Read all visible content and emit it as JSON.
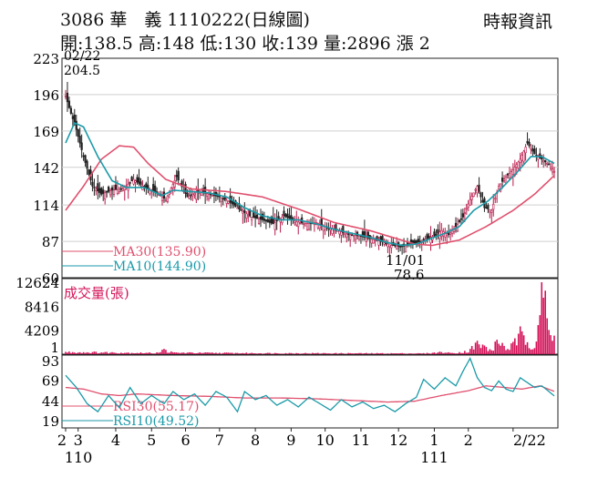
{
  "header": {
    "stock": "3086 華　義 1110222(日線圖)",
    "source": "時報資訊",
    "ohlc": "開:138.5 高:148 低:130 收:139 量:2896 漲 2"
  },
  "chart_data": [
    {
      "type": "candlestick",
      "ylim": [
        60,
        223
      ],
      "yticks": [
        "223",
        "196",
        "169",
        "142",
        "114",
        "87",
        "60"
      ],
      "annotations": {
        "high_date": "02/22",
        "high_value": "204.5",
        "low_date": "11/01",
        "low_value": "78.6"
      },
      "legend": [
        {
          "label": "MA30(135.90)",
          "color": "#e0506e"
        },
        {
          "label": "MA10(144.90)",
          "color": "#1b9aa8"
        }
      ],
      "price_keypoints": [
        [
          0,
          195
        ],
        [
          3,
          182
        ],
        [
          6,
          170
        ],
        [
          10,
          150
        ],
        [
          15,
          128
        ],
        [
          20,
          122
        ],
        [
          26,
          125
        ],
        [
          32,
          126
        ],
        [
          38,
          133
        ],
        [
          44,
          127
        ],
        [
          50,
          124
        ],
        [
          56,
          118
        ],
        [
          62,
          135
        ],
        [
          68,
          120
        ],
        [
          74,
          124
        ],
        [
          80,
          122
        ],
        [
          86,
          120
        ],
        [
          92,
          116
        ],
        [
          98,
          110
        ],
        [
          104,
          105
        ],
        [
          110,
          103
        ],
        [
          116,
          100
        ],
        [
          122,
          106
        ],
        [
          128,
          102
        ],
        [
          134,
          100
        ],
        [
          140,
          101
        ],
        [
          146,
          97
        ],
        [
          152,
          95
        ],
        [
          158,
          92
        ],
        [
          164,
          91
        ],
        [
          170,
          89
        ],
        [
          176,
          87
        ],
        [
          182,
          84
        ],
        [
          188,
          83
        ],
        [
          194,
          85
        ],
        [
          200,
          88
        ],
        [
          206,
          91
        ],
        [
          210,
          95
        ],
        [
          214,
          92
        ],
        [
          218,
          98
        ],
        [
          222,
          105
        ],
        [
          226,
          118
        ],
        [
          230,
          128
        ],
        [
          234,
          112
        ],
        [
          238,
          110
        ],
        [
          242,
          128
        ],
        [
          246,
          135
        ],
        [
          250,
          140
        ],
        [
          254,
          148
        ],
        [
          258,
          160
        ],
        [
          262,
          152
        ],
        [
          266,
          148
        ],
        [
          270,
          144
        ],
        [
          273,
          139
        ]
      ],
      "ma30_keypoints": [
        [
          0,
          110
        ],
        [
          10,
          128
        ],
        [
          20,
          148
        ],
        [
          30,
          158
        ],
        [
          38,
          157
        ],
        [
          46,
          145
        ],
        [
          56,
          133
        ],
        [
          70,
          126
        ],
        [
          90,
          124
        ],
        [
          110,
          120
        ],
        [
          130,
          111
        ],
        [
          150,
          101
        ],
        [
          170,
          95
        ],
        [
          185,
          89
        ],
        [
          195,
          85
        ],
        [
          205,
          84
        ],
        [
          220,
          88
        ],
        [
          235,
          98
        ],
        [
          250,
          110
        ],
        [
          262,
          122
        ],
        [
          273,
          135.9
        ]
      ],
      "ma10_keypoints": [
        [
          0,
          160
        ],
        [
          5,
          175
        ],
        [
          10,
          172
        ],
        [
          18,
          150
        ],
        [
          26,
          132
        ],
        [
          34,
          127
        ],
        [
          44,
          127
        ],
        [
          54,
          121
        ],
        [
          60,
          125
        ],
        [
          70,
          124
        ],
        [
          80,
          123
        ],
        [
          90,
          120
        ],
        [
          100,
          112
        ],
        [
          110,
          106
        ],
        [
          120,
          103
        ],
        [
          130,
          103
        ],
        [
          140,
          100
        ],
        [
          150,
          96
        ],
        [
          160,
          93
        ],
        [
          170,
          90
        ],
        [
          180,
          86
        ],
        [
          188,
          84
        ],
        [
          196,
          85
        ],
        [
          204,
          89
        ],
        [
          212,
          93
        ],
        [
          220,
          98
        ],
        [
          228,
          110
        ],
        [
          236,
          117
        ],
        [
          244,
          127
        ],
        [
          252,
          138
        ],
        [
          260,
          150
        ],
        [
          266,
          150
        ],
        [
          273,
          144.9
        ]
      ]
    },
    {
      "type": "bar",
      "title": "成交量(張)",
      "yticks": [
        "12624",
        "8416",
        "4209",
        "1"
      ],
      "ylim": [
        0,
        12624
      ],
      "color": "#d4145a",
      "volume_keypoints": [
        [
          0,
          350
        ],
        [
          20,
          300
        ],
        [
          50,
          200
        ],
        [
          55,
          700
        ],
        [
          60,
          250
        ],
        [
          100,
          180
        ],
        [
          150,
          150
        ],
        [
          200,
          130
        ],
        [
          205,
          200
        ],
        [
          210,
          350
        ],
        [
          215,
          200
        ],
        [
          220,
          300
        ],
        [
          225,
          500
        ],
        [
          230,
          1800
        ],
        [
          234,
          1200
        ],
        [
          238,
          600
        ],
        [
          242,
          2400
        ],
        [
          246,
          900
        ],
        [
          250,
          1500
        ],
        [
          254,
          3200
        ],
        [
          258,
          2200
        ],
        [
          262,
          1400
        ],
        [
          264,
          5800
        ],
        [
          266,
          12624
        ],
        [
          268,
          7600
        ],
        [
          270,
          3800
        ],
        [
          272,
          2000
        ],
        [
          273,
          2896
        ]
      ]
    },
    {
      "type": "line",
      "ylim": [
        10,
        100
      ],
      "yticks": [
        "93",
        "69",
        "44",
        "19"
      ],
      "series": [
        {
          "name": "RSI30(55.17)",
          "color": "#e0506e",
          "keypoints": [
            [
              0,
              60
            ],
            [
              10,
              58
            ],
            [
              20,
              52
            ],
            [
              30,
              50
            ],
            [
              40,
              52
            ],
            [
              60,
              50
            ],
            [
              80,
              49
            ],
            [
              100,
              47
            ],
            [
              120,
              47
            ],
            [
              140,
              46
            ],
            [
              160,
              44
            ],
            [
              180,
              42
            ],
            [
              195,
              43
            ],
            [
              210,
              50
            ],
            [
              225,
              56
            ],
            [
              235,
              62
            ],
            [
              245,
              60
            ],
            [
              255,
              58
            ],
            [
              265,
              62
            ],
            [
              273,
              55.17
            ]
          ]
        },
        {
          "name": "RSI10(49.52)",
          "color": "#1b9aa8",
          "keypoints": [
            [
              0,
              75
            ],
            [
              6,
              60
            ],
            [
              12,
              40
            ],
            [
              18,
              30
            ],
            [
              24,
              50
            ],
            [
              30,
              35
            ],
            [
              36,
              60
            ],
            [
              42,
              40
            ],
            [
              48,
              50
            ],
            [
              55,
              40
            ],
            [
              60,
              55
            ],
            [
              66,
              45
            ],
            [
              72,
              52
            ],
            [
              78,
              38
            ],
            [
              84,
              55
            ],
            [
              90,
              48
            ],
            [
              96,
              30
            ],
            [
              100,
              55
            ],
            [
              106,
              45
            ],
            [
              112,
              50
            ],
            [
              118,
              38
            ],
            [
              124,
              45
            ],
            [
              130,
              36
            ],
            [
              136,
              48
            ],
            [
              142,
              40
            ],
            [
              148,
              32
            ],
            [
              154,
              45
            ],
            [
              160,
              36
            ],
            [
              166,
              42
            ],
            [
              172,
              34
            ],
            [
              178,
              38
            ],
            [
              184,
              30
            ],
            [
              190,
              40
            ],
            [
              196,
              48
            ],
            [
              200,
              70
            ],
            [
              206,
              58
            ],
            [
              212,
              72
            ],
            [
              218,
              62
            ],
            [
              222,
              80
            ],
            [
              226,
              96
            ],
            [
              230,
              72
            ],
            [
              234,
              60
            ],
            [
              238,
              56
            ],
            [
              242,
              68
            ],
            [
              246,
              58
            ],
            [
              250,
              55
            ],
            [
              254,
              72
            ],
            [
              258,
              66
            ],
            [
              262,
              60
            ],
            [
              266,
              62
            ],
            [
              270,
              55
            ],
            [
              273,
              49.52
            ]
          ]
        }
      ]
    }
  ],
  "x_axis": {
    "labels": [
      "2",
      "3",
      "4",
      "5",
      "6",
      "7",
      "8",
      "9",
      "10",
      "11",
      "12",
      "1",
      "2",
      "2/22"
    ],
    "label_index": [
      0,
      7,
      28,
      48,
      67,
      86,
      106,
      126,
      145,
      165,
      186,
      206,
      225,
      250
    ],
    "year_labels": [
      {
        "text": "110",
        "index": 0
      },
      {
        "text": "111",
        "index": 206
      }
    ],
    "total_days": 274
  }
}
